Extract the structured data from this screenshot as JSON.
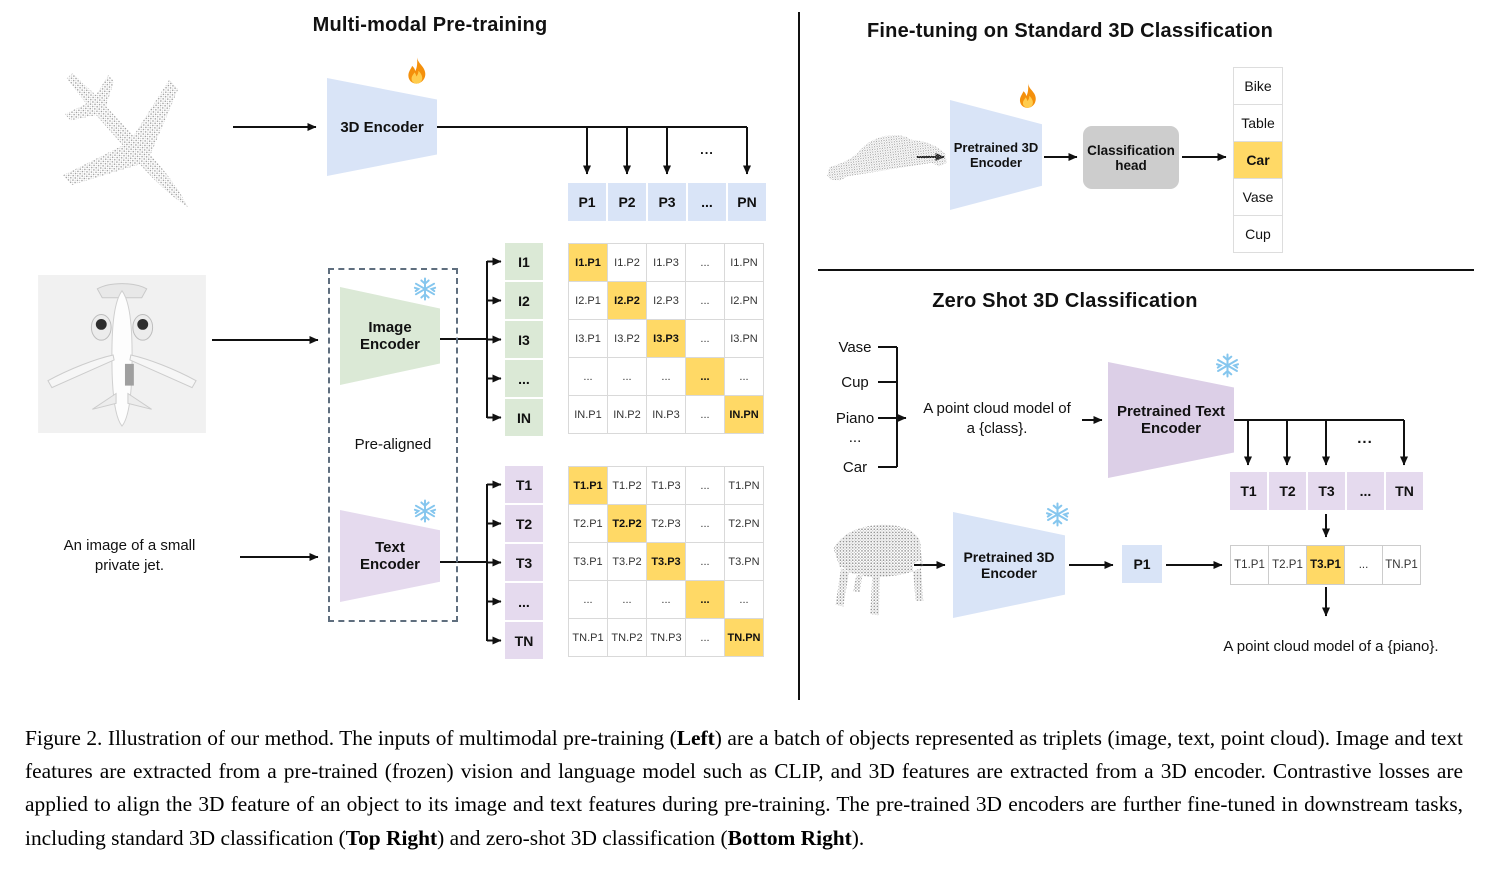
{
  "colors": {
    "encoder_blue": "#d9e4f7",
    "encoder_green": "#dbe9d6",
    "label_purple": "#e5daee",
    "encoder_purple": "#dccfe7",
    "highlight_orange": "#FFD966",
    "head_gray": "#cdcdcd",
    "grid_border": "#d9d9d9",
    "line_black": "#111111",
    "snowflake_blue": "#85c6ee",
    "flame_orange": "#f4900c"
  },
  "left": {
    "title": "Multi-modal Pre-training",
    "encoder_3d_label": "3D Encoder",
    "image_encoder_label": "Image\nEncoder",
    "text_encoder_label": "Text\nEncoder",
    "pre_aligned_label": "Pre-aligned",
    "image_caption": "An image of a small\nprivate jet.",
    "ellipsis": "...",
    "p_row": [
      "P1",
      "P2",
      "P3",
      "...",
      "PN"
    ],
    "i_labels": [
      "I1",
      "I2",
      "I3",
      "...",
      "IN"
    ],
    "t_labels": [
      "T1",
      "T2",
      "T3",
      "...",
      "TN"
    ],
    "i_matrix": [
      [
        "I1.P1",
        "I1.P2",
        "I1.P3",
        "...",
        "I1.PN"
      ],
      [
        "I2.P1",
        "I2.P2",
        "I2.P3",
        "...",
        "I2.PN"
      ],
      [
        "I3.P1",
        "I3.P2",
        "I3.P3",
        "...",
        "I3.PN"
      ],
      [
        "...",
        "...",
        "...",
        "...",
        "..."
      ],
      [
        "IN.P1",
        "IN.P2",
        "IN.P3",
        "...",
        "IN.PN"
      ]
    ],
    "t_matrix": [
      [
        "T1.P1",
        "T1.P2",
        "T1.P3",
        "...",
        "T1.PN"
      ],
      [
        "T2.P1",
        "T2.P2",
        "T2.P3",
        "...",
        "T2.PN"
      ],
      [
        "T3.P1",
        "T3.P2",
        "T3.P3",
        "...",
        "T3.PN"
      ],
      [
        "...",
        "...",
        "...",
        "...",
        "..."
      ],
      [
        "TN.P1",
        "TN.P2",
        "TN.P3",
        "...",
        "TN.PN"
      ]
    ]
  },
  "top_right": {
    "title": "Fine-tuning on Standard 3D Classification",
    "encoder_label": "Pretrained 3D\nEncoder",
    "head_label": "Classification\nhead",
    "classes": [
      "Bike",
      "Table",
      "Car",
      "Vase",
      "Cup"
    ],
    "highlight_index": 2
  },
  "bottom_right": {
    "title": "Zero Shot 3D Classification",
    "class_list": [
      "Vase",
      "Cup",
      "Piano",
      "...",
      "Car"
    ],
    "prompt": "A point cloud model of\na {class}.",
    "text_encoder_label": "Pretrained Text\nEncoder",
    "encoder_label": "Pretrained 3D\nEncoder",
    "p1_label": "P1",
    "ellipsis": "...",
    "t_row": [
      "T1",
      "T2",
      "T3",
      "...",
      "TN"
    ],
    "result_row": [
      "T1.P1",
      "T2.P1",
      "T3.P1",
      "...",
      "TN.P1"
    ],
    "highlight_index": 2,
    "result_caption": "A point cloud model of a {piano}."
  },
  "caption": {
    "segments": [
      {
        "text": "Figure 2. Illustration of our method. The inputs of multimodal pre-training (",
        "bold": false
      },
      {
        "text": "Left",
        "bold": true
      },
      {
        "text": ") are a batch of objects represented as triplets (image, text, point cloud). Image and text features are extracted from a pre-trained (frozen) vision and language model such as CLIP, and 3D features are extracted from a 3D encoder. Contrastive losses are applied to align the 3D feature of an object to its image and text features during pre-training. The pre-trained 3D encoders are further fine-tuned in downstream tasks, including standard 3D classification (",
        "bold": false
      },
      {
        "text": "Top Right",
        "bold": true
      },
      {
        "text": ") and zero-shot 3D classification (",
        "bold": false
      },
      {
        "text": "Bottom Right",
        "bold": true
      },
      {
        "text": ").",
        "bold": false
      }
    ]
  }
}
